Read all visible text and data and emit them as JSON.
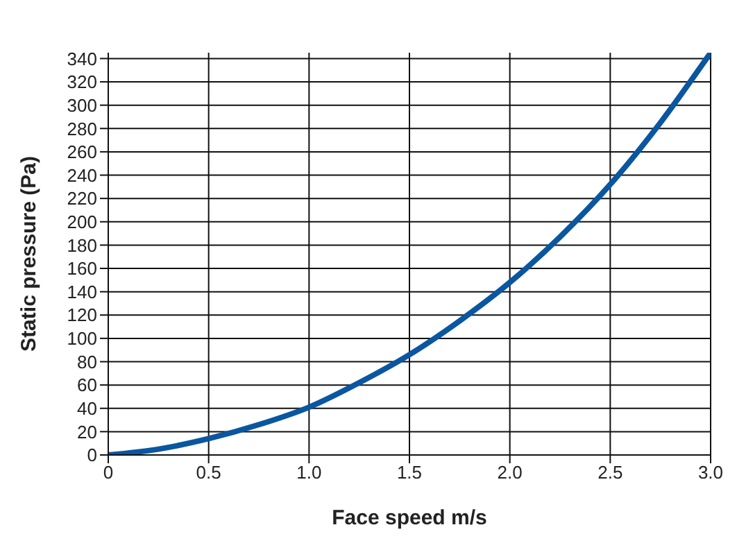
{
  "chart_data": {
    "type": "line",
    "xlabel": "Face speed m/s",
    "ylabel": "Static pressure (Pa)",
    "x": [
      0,
      0.25,
      0.5,
      0.75,
      1.0,
      1.25,
      1.5,
      1.75,
      2.0,
      2.25,
      2.5,
      2.75,
      3.0
    ],
    "series": [
      {
        "color": "#0a56a0",
        "values": [
          0,
          5,
          14,
          26,
          41,
          62,
          86,
          115,
          148,
          187,
          232,
          285,
          345
        ]
      }
    ],
    "xlim": [
      0,
      3.0
    ],
    "xticks": [
      0,
      {
        "value": 0.5,
        "label": "0.5"
      },
      {
        "value": 1,
        "label": "1.0"
      },
      {
        "value": 1.5,
        "label": "1.5"
      },
      {
        "value": 2,
        "label": "2.0"
      },
      {
        "value": 2.5,
        "label": "2.5"
      },
      {
        "value": 3,
        "label": "3.0"
      }
    ],
    "ylim": [
      0,
      345
    ],
    "yticks": [
      0,
      20,
      40,
      60,
      80,
      100,
      120,
      140,
      160,
      180,
      200,
      220,
      240,
      260,
      280,
      300,
      320,
      340
    ],
    "grid": true,
    "legend": false,
    "marker": "none",
    "line_style": "solid"
  }
}
